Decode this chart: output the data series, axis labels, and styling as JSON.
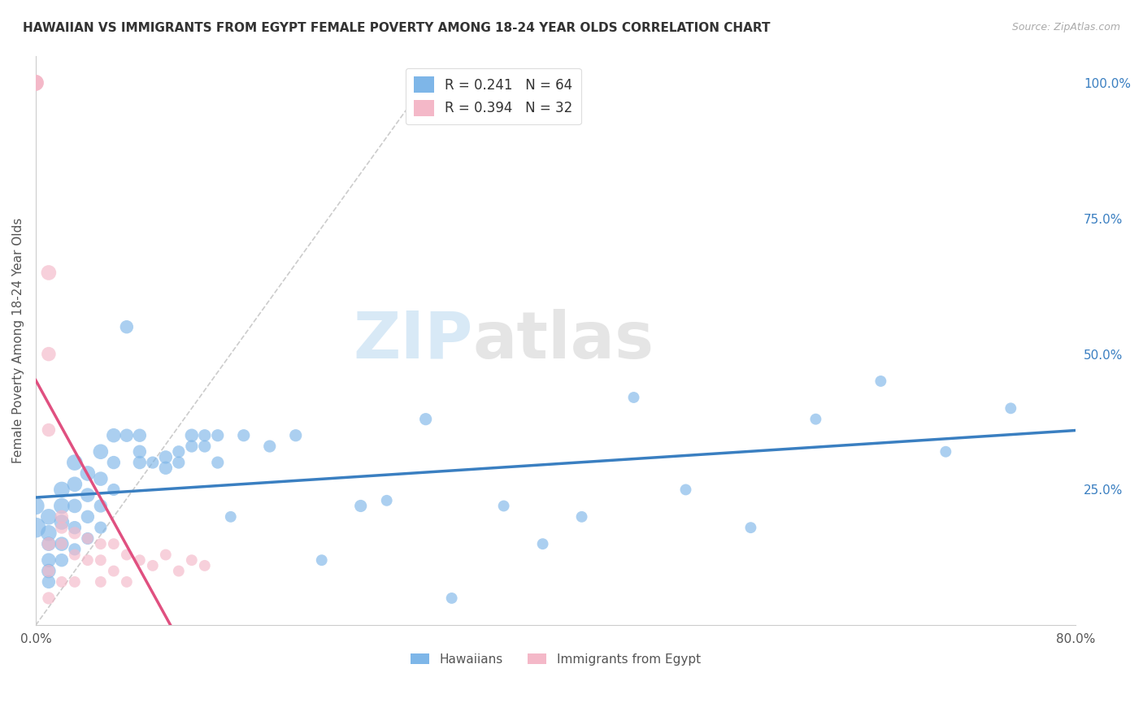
{
  "title": "HAWAIIAN VS IMMIGRANTS FROM EGYPT FEMALE POVERTY AMONG 18-24 YEAR OLDS CORRELATION CHART",
  "source": "Source: ZipAtlas.com",
  "ylabel": "Female Poverty Among 18-24 Year Olds",
  "xlim": [
    0.0,
    0.8
  ],
  "ylim": [
    0.0,
    1.05
  ],
  "hawaiians_R": 0.241,
  "hawaiians_N": 64,
  "egypt_R": 0.394,
  "egypt_N": 32,
  "color_hawaiian": "#7eb6e8",
  "color_egypt": "#f4b8c8",
  "color_hawaiian_line": "#3a7fc1",
  "color_egypt_line": "#e05080",
  "watermark_zip": "ZIP",
  "watermark_atlas": "atlas",
  "hawaiians_x": [
    0.0,
    0.0,
    0.01,
    0.01,
    0.01,
    0.01,
    0.01,
    0.01,
    0.02,
    0.02,
    0.02,
    0.02,
    0.02,
    0.03,
    0.03,
    0.03,
    0.03,
    0.03,
    0.04,
    0.04,
    0.04,
    0.04,
    0.05,
    0.05,
    0.05,
    0.05,
    0.06,
    0.06,
    0.06,
    0.07,
    0.07,
    0.08,
    0.08,
    0.08,
    0.09,
    0.1,
    0.1,
    0.11,
    0.11,
    0.12,
    0.12,
    0.13,
    0.13,
    0.14,
    0.14,
    0.15,
    0.16,
    0.18,
    0.2,
    0.22,
    0.25,
    0.27,
    0.3,
    0.32,
    0.36,
    0.39,
    0.42,
    0.46,
    0.5,
    0.55,
    0.6,
    0.65,
    0.7,
    0.75
  ],
  "hawaiians_y": [
    0.18,
    0.22,
    0.2,
    0.17,
    0.15,
    0.12,
    0.1,
    0.08,
    0.25,
    0.22,
    0.19,
    0.15,
    0.12,
    0.3,
    0.26,
    0.22,
    0.18,
    0.14,
    0.28,
    0.24,
    0.2,
    0.16,
    0.32,
    0.27,
    0.22,
    0.18,
    0.35,
    0.3,
    0.25,
    0.35,
    0.55,
    0.3,
    0.32,
    0.35,
    0.3,
    0.31,
    0.29,
    0.3,
    0.32,
    0.35,
    0.33,
    0.35,
    0.33,
    0.3,
    0.35,
    0.2,
    0.35,
    0.33,
    0.35,
    0.12,
    0.22,
    0.23,
    0.38,
    0.05,
    0.22,
    0.15,
    0.2,
    0.42,
    0.25,
    0.18,
    0.38,
    0.45,
    0.32,
    0.4
  ],
  "hawaiians_size": [
    320,
    240,
    200,
    200,
    160,
    160,
    160,
    140,
    200,
    200,
    180,
    160,
    140,
    200,
    180,
    160,
    140,
    120,
    180,
    160,
    140,
    120,
    180,
    160,
    140,
    120,
    160,
    140,
    120,
    140,
    140,
    140,
    140,
    140,
    120,
    140,
    140,
    120,
    120,
    140,
    120,
    120,
    120,
    120,
    120,
    100,
    120,
    120,
    120,
    100,
    120,
    100,
    120,
    100,
    100,
    100,
    100,
    100,
    100,
    100,
    100,
    100,
    100,
    100
  ],
  "egypt_x": [
    0.0,
    0.0,
    0.0,
    0.0,
    0.01,
    0.01,
    0.01,
    0.01,
    0.01,
    0.01,
    0.02,
    0.02,
    0.02,
    0.02,
    0.03,
    0.03,
    0.03,
    0.04,
    0.04,
    0.05,
    0.05,
    0.05,
    0.06,
    0.06,
    0.07,
    0.07,
    0.08,
    0.09,
    0.1,
    0.11,
    0.12,
    0.13
  ],
  "egypt_y": [
    1.0,
    1.0,
    1.0,
    1.0,
    0.65,
    0.5,
    0.36,
    0.15,
    0.1,
    0.05,
    0.2,
    0.18,
    0.15,
    0.08,
    0.17,
    0.13,
    0.08,
    0.16,
    0.12,
    0.15,
    0.12,
    0.08,
    0.15,
    0.1,
    0.13,
    0.08,
    0.12,
    0.11,
    0.13,
    0.1,
    0.12,
    0.11
  ],
  "egypt_size": [
    200,
    200,
    200,
    160,
    180,
    160,
    140,
    140,
    120,
    120,
    140,
    120,
    100,
    100,
    120,
    100,
    100,
    100,
    100,
    100,
    100,
    100,
    100,
    100,
    100,
    100,
    100,
    100,
    100,
    100,
    100,
    100
  ]
}
